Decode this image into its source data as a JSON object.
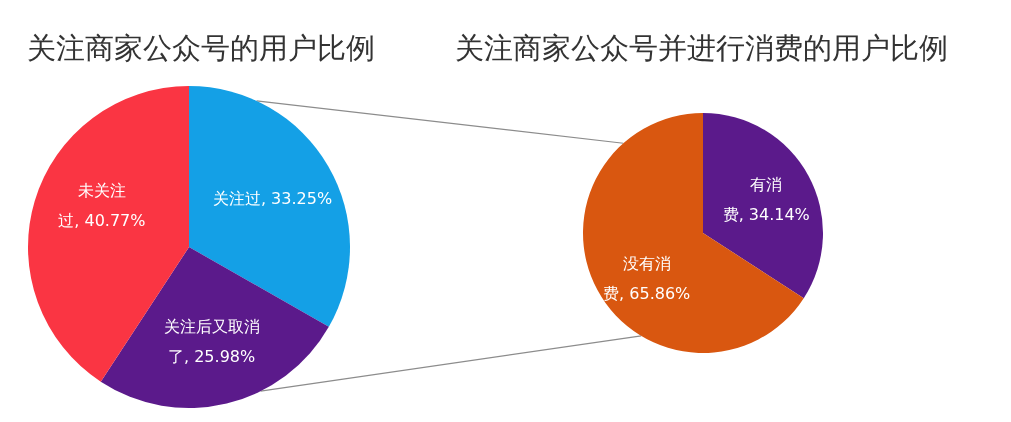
{
  "chart_data": [
    {
      "type": "pie",
      "title": "关注商家公众号的用户比例",
      "categories": [
        "关注过",
        "关注后又取消了",
        "未关注过"
      ],
      "values": [
        33.25,
        25.98,
        40.77
      ],
      "colors": [
        "#14a0e6",
        "#5b1a8b",
        "#fa3543"
      ],
      "value_labels": [
        "33.25%",
        "25.98%",
        "40.77%"
      ]
    },
    {
      "type": "pie",
      "title": "关注商家公众号并进行消费的用户比例",
      "categories": [
        "有消费",
        "没有消费"
      ],
      "values": [
        34.14,
        65.86
      ],
      "colors": [
        "#5b1a8b",
        "#d95710"
      ],
      "value_labels": [
        "34.14%",
        "65.86%"
      ]
    }
  ]
}
